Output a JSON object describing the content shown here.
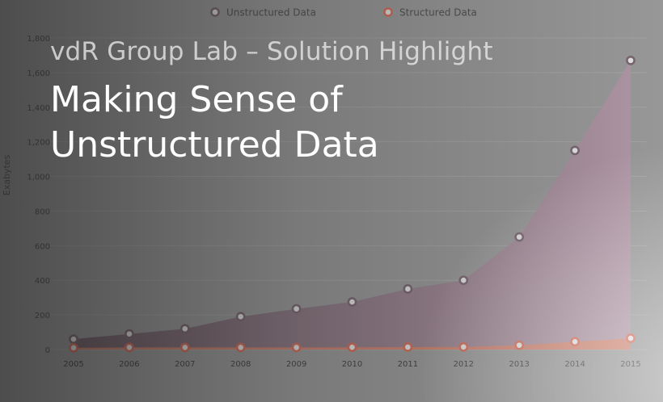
{
  "headline": {
    "subtitle": "vdR Group Lab – Solution Highlight",
    "title_line1": "Making Sense of",
    "title_line2": "Unstructured Data"
  },
  "chart_data": {
    "type": "area",
    "title": "",
    "xlabel": "",
    "ylabel": "Exabytes",
    "ylim": [
      0,
      1800
    ],
    "yticks": [
      0,
      200,
      400,
      600,
      800,
      1000,
      1200,
      1400,
      1600,
      1800
    ],
    "ytick_labels": [
      "0",
      "200",
      "400",
      "600",
      "800",
      "1,000",
      "1,200",
      "1,400",
      "1,600",
      "1,800"
    ],
    "categories": [
      "2005",
      "2006",
      "2007",
      "2008",
      "2009",
      "2010",
      "2011",
      "2012",
      "2013",
      "2014",
      "2015"
    ],
    "legend_position": "top-center",
    "grid": true,
    "series": [
      {
        "name": "Unstructured Data",
        "color": "#8e6e7e",
        "values": [
          60,
          90,
          120,
          190,
          235,
          275,
          350,
          400,
          650,
          1150,
          1670
        ]
      },
      {
        "name": "Structured Data",
        "color": "#d9765a",
        "values": [
          10,
          12,
          12,
          12,
          12,
          13,
          14,
          15,
          25,
          45,
          65
        ]
      }
    ]
  }
}
